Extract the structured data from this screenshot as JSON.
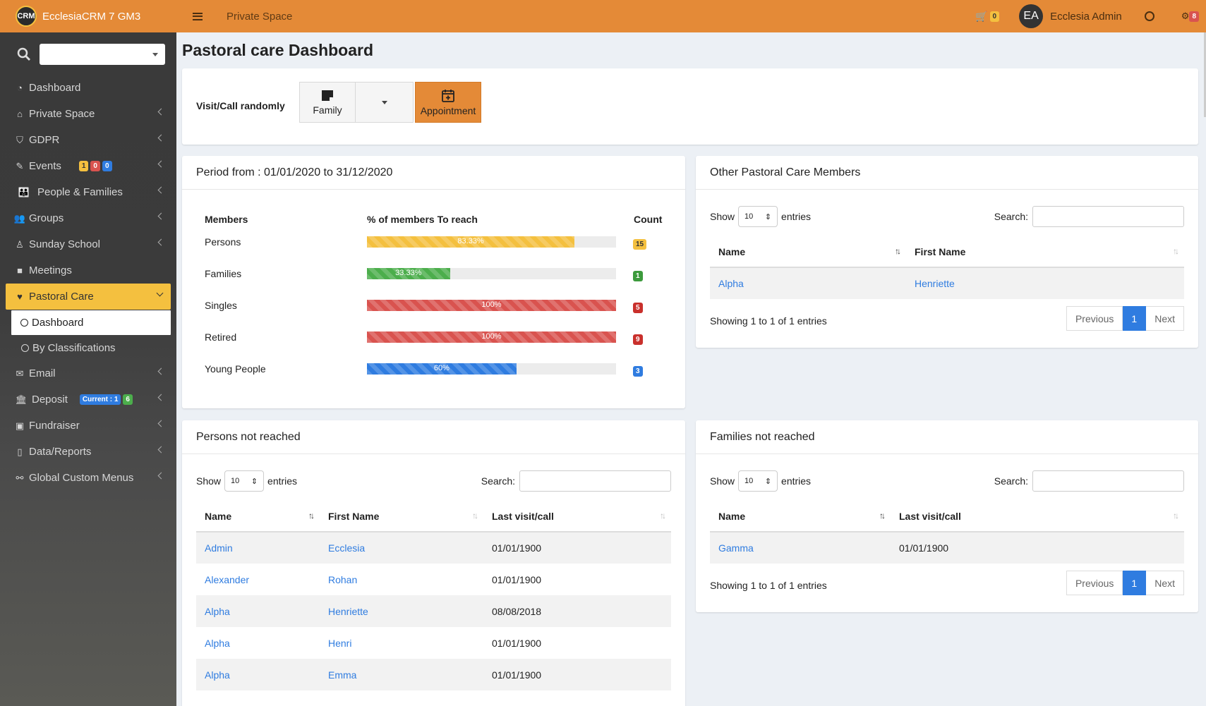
{
  "brand": {
    "logo_text": "CRM",
    "title": "EcclesiaCRM 7 GM3"
  },
  "topbar": {
    "crumb": "Private Space",
    "cart_count": "0",
    "avatar": "EA",
    "user": "Ecclesia Admin",
    "notif_count": "8"
  },
  "sidebar": {
    "items": [
      {
        "label": "Dashboard",
        "icon": "dashboard-icon"
      },
      {
        "label": "Private Space",
        "icon": "home-icon"
      },
      {
        "label": "GDPR",
        "icon": "shield-icon"
      },
      {
        "label": "Events",
        "icon": "ticket-icon",
        "badges": [
          "1",
          "0",
          "0"
        ]
      },
      {
        "label": "People & Families",
        "icon": "people-icon"
      },
      {
        "label": "Groups",
        "icon": "users-icon"
      },
      {
        "label": "Sunday School",
        "icon": "child-icon"
      },
      {
        "label": "Meetings",
        "icon": "video-icon"
      },
      {
        "label": "Pastoral Care",
        "icon": "heartbeat-icon"
      },
      {
        "label": "Email",
        "icon": "envelope-icon"
      },
      {
        "label": "Deposit",
        "icon": "bank-icon",
        "badges": [
          "Current : 1",
          "6"
        ]
      },
      {
        "label": "Fundraiser",
        "icon": "money-icon"
      },
      {
        "label": "Data/Reports",
        "icon": "file-pdf-icon"
      },
      {
        "label": "Global Custom Menus",
        "icon": "link-icon"
      }
    ],
    "sub": [
      {
        "label": "Dashboard"
      },
      {
        "label": "By Classifications"
      }
    ]
  },
  "page": {
    "title": "Pastoral care Dashboard"
  },
  "visit": {
    "label": "Visit/Call randomly",
    "family_btn": "Family",
    "appt_btn": "Appointment"
  },
  "period": {
    "header": "Period from : 01/01/2020 to 31/12/2020",
    "col_members": "Members",
    "col_pct": "% of members To reach",
    "col_count": "Count",
    "rows": [
      {
        "label": "Persons",
        "pct": 83.33,
        "pct_label": "83.33%",
        "count": "15",
        "color": "#f4c03f",
        "badge": "#f4c03f"
      },
      {
        "label": "Families",
        "pct": 33.33,
        "pct_label": "33.33%",
        "count": "1",
        "color": "#4cae4c",
        "badge": "#3c9a3c"
      },
      {
        "label": "Singles",
        "pct": 100,
        "pct_label": "100%",
        "count": "5",
        "color": "#d9534f",
        "badge": "#c9302c"
      },
      {
        "label": "Retired",
        "pct": 100,
        "pct_label": "100%",
        "count": "9",
        "color": "#d9534f",
        "badge": "#c9302c"
      },
      {
        "label": "Young People",
        "pct": 60,
        "pct_label": "60%",
        "count": "3",
        "color": "#2f7ce0",
        "badge": "#2f7ce0"
      }
    ]
  },
  "other": {
    "header": "Other Pastoral Care Members",
    "show": "Show",
    "len": "10",
    "entries": "entries",
    "search": "Search:",
    "col_name": "Name",
    "col_first": "First Name",
    "rows": [
      {
        "name": "Alpha",
        "first": "Henriette"
      }
    ],
    "info": "Showing 1 to 1 of 1 entries",
    "prev": "Previous",
    "page": "1",
    "next": "Next"
  },
  "persons": {
    "header": "Persons not reached",
    "show": "Show",
    "len": "10",
    "entries": "entries",
    "search": "Search:",
    "col_name": "Name",
    "col_first": "First Name",
    "col_last": "Last visit/call",
    "rows": [
      {
        "name": "Admin",
        "first": "Ecclesia",
        "last": "01/01/1900"
      },
      {
        "name": "Alexander",
        "first": "Rohan",
        "last": "01/01/1900"
      },
      {
        "name": "Alpha",
        "first": "Henriette",
        "last": "08/08/2018"
      },
      {
        "name": "Alpha",
        "first": "Henri",
        "last": "01/01/1900"
      },
      {
        "name": "Alpha",
        "first": "Emma",
        "last": "01/01/1900"
      }
    ]
  },
  "families": {
    "header": "Families not reached",
    "show": "Show",
    "len": "10",
    "entries": "entries",
    "search": "Search:",
    "col_name": "Name",
    "col_last": "Last visit/call",
    "rows": [
      {
        "name": "Gamma",
        "last": "01/01/1900"
      }
    ],
    "info": "Showing 1 to 1 of 1 entries",
    "prev": "Previous",
    "page": "1",
    "next": "Next"
  }
}
